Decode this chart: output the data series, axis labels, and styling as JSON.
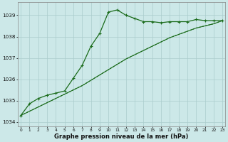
{
  "xlabel": "Graphe pression niveau de la mer (hPa)",
  "background_color": "#cce8e8",
  "grid_color": "#aacccc",
  "line_color": "#1a6b1a",
  "hours": [
    0,
    1,
    2,
    3,
    4,
    5,
    6,
    7,
    8,
    9,
    10,
    11,
    12,
    13,
    14,
    15,
    16,
    17,
    18,
    19,
    20,
    21,
    22,
    23
  ],
  "series_main": [
    1034.3,
    1034.85,
    1035.1,
    1035.25,
    1035.35,
    1035.45,
    1036.05,
    1036.65,
    1037.55,
    1038.15,
    1039.15,
    1039.25,
    1039.0,
    1038.85,
    1038.7,
    1038.7,
    1038.65,
    1038.7,
    1038.7,
    1038.7,
    1038.8,
    1038.75,
    1038.75,
    1038.75
  ],
  "series_linear1": [
    1034.3,
    1034.5,
    1034.7,
    1034.9,
    1035.1,
    1035.3,
    1035.5,
    1035.7,
    1035.95,
    1036.2,
    1036.45,
    1036.7,
    1036.95,
    1037.15,
    1037.35,
    1037.55,
    1037.75,
    1037.95,
    1038.1,
    1038.25,
    1038.4,
    1038.5,
    1038.6,
    1038.75
  ],
  "series_linear2": [
    1034.3,
    1034.5,
    1034.7,
    1034.9,
    1035.1,
    1035.3,
    1035.5,
    1035.7,
    1035.95,
    1036.2,
    1036.45,
    1036.7,
    1036.95,
    1037.15,
    1037.35,
    1037.55,
    1037.75,
    1037.95,
    1038.1,
    1038.25,
    1038.4,
    1038.5,
    1038.6,
    1038.75
  ],
  "ylim": [
    1033.8,
    1039.6
  ],
  "yticks": [
    1034,
    1035,
    1036,
    1037,
    1038,
    1039
  ],
  "xtick_fontsize": 4.2,
  "ytick_fontsize": 5.2,
  "xlabel_fontsize": 6.0
}
